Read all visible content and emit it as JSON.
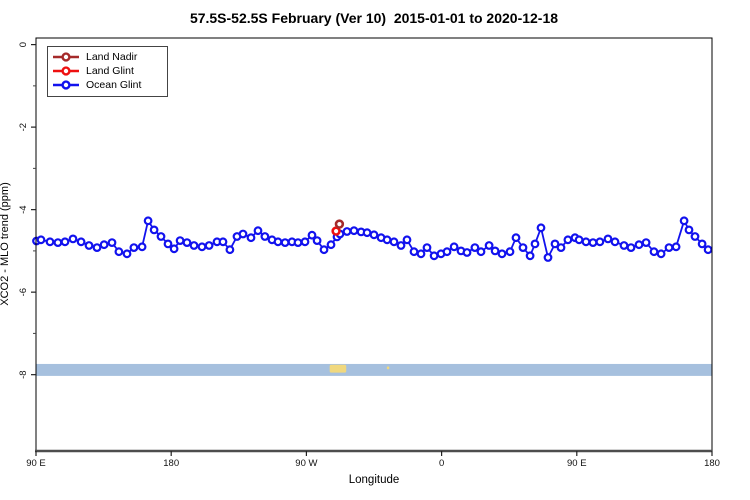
{
  "header": {
    "title": "57.5S-52.5S February (Ver 10)  2015-01-01 to 2020-12-18"
  },
  "legend": {
    "items": [
      {
        "label": "Land Nadir",
        "color": "#a52a2a"
      },
      {
        "label": "Land Glint",
        "color": "#ee1010"
      },
      {
        "label": "Ocean Glint",
        "color": "#1212ee"
      }
    ]
  },
  "axes": {
    "x": {
      "label": "Longitude",
      "ticks": [
        {
          "lon": 90,
          "label": "90 E"
        },
        {
          "lon": 180,
          "label": "180"
        },
        {
          "lon": 270,
          "label": "90 W"
        },
        {
          "lon": 360,
          "label": "0"
        },
        {
          "lon": 450,
          "label": "90 E"
        },
        {
          "lon": 540,
          "label": "180"
        }
      ]
    },
    "y": {
      "label": "XCO2 - MLO trend (ppm)",
      "ticks": [
        {
          "value": 0,
          "label": "0"
        },
        {
          "value": -2,
          "label": "-2"
        },
        {
          "value": -4,
          "label": "-4"
        },
        {
          "value": -6,
          "label": "-6"
        },
        {
          "value": -8,
          "label": "-8"
        }
      ],
      "minor_ticks": [
        -1,
        -3,
        -5,
        -7
      ]
    }
  },
  "chart_data": {
    "type": "line",
    "title": "57.5S-52.5S February (Ver 10)  2015-01-01 to 2020-12-18",
    "xlabel": "Longitude",
    "ylabel": "XCO2 - MLO trend (ppm)",
    "xlim": [
      90,
      540
    ],
    "ylim": [
      0.16,
      -9.85
    ],
    "x_axis_style": "longitude wraps eastward: 90E, 180, 90W, 0, 90E, 180",
    "legend_position": "top-left",
    "grid": false,
    "series": [
      {
        "name": "Land Nadir",
        "color": "#a52a2a",
        "marker": "open-circle",
        "points": [
          [
            292.0,
            -4.35
          ]
        ]
      },
      {
        "name": "Land Glint",
        "color": "#ee1010",
        "marker": "open-circle",
        "points": [
          [
            289.8,
            -4.52
          ]
        ]
      },
      {
        "name": "Ocean Glint",
        "color": "#1212ee",
        "marker": "open-circle",
        "points": [
          [
            90.3,
            -4.76
          ],
          [
            93.3,
            -4.73
          ],
          [
            99.3,
            -4.78
          ],
          [
            104.6,
            -4.8
          ],
          [
            109.3,
            -4.78
          ],
          [
            114.6,
            -4.71
          ],
          [
            120.0,
            -4.78
          ],
          [
            125.3,
            -4.87
          ],
          [
            130.6,
            -4.92
          ],
          [
            135.3,
            -4.85
          ],
          [
            140.6,
            -4.8
          ],
          [
            145.2,
            -5.02
          ],
          [
            150.6,
            -5.07
          ],
          [
            155.2,
            -4.92
          ],
          [
            160.6,
            -4.9
          ],
          [
            164.6,
            -4.27
          ],
          [
            168.6,
            -4.49
          ],
          [
            173.2,
            -4.65
          ],
          [
            177.9,
            -4.83
          ],
          [
            181.9,
            -4.95
          ],
          [
            185.9,
            -4.75
          ],
          [
            190.5,
            -4.8
          ],
          [
            195.2,
            -4.87
          ],
          [
            200.5,
            -4.9
          ],
          [
            205.2,
            -4.87
          ],
          [
            210.5,
            -4.78
          ],
          [
            214.5,
            -4.78
          ],
          [
            219.1,
            -4.97
          ],
          [
            223.8,
            -4.65
          ],
          [
            227.8,
            -4.59
          ],
          [
            233.1,
            -4.68
          ],
          [
            237.8,
            -4.51
          ],
          [
            242.4,
            -4.65
          ],
          [
            247.1,
            -4.73
          ],
          [
            251.1,
            -4.78
          ],
          [
            255.8,
            -4.8
          ],
          [
            260.4,
            -4.78
          ],
          [
            264.4,
            -4.8
          ],
          [
            269.1,
            -4.78
          ],
          [
            273.7,
            -4.62
          ],
          [
            277.1,
            -4.75
          ],
          [
            281.7,
            -4.97
          ],
          [
            286.4,
            -4.85
          ],
          [
            290.4,
            -4.66
          ],
          [
            292.4,
            -4.59
          ],
          [
            297.0,
            -4.53
          ],
          [
            301.7,
            -4.51
          ],
          [
            306.4,
            -4.54
          ],
          [
            310.4,
            -4.56
          ],
          [
            315.0,
            -4.61
          ],
          [
            319.7,
            -4.68
          ],
          [
            323.7,
            -4.73
          ],
          [
            328.3,
            -4.78
          ],
          [
            333.0,
            -4.87
          ],
          [
            337.0,
            -4.73
          ],
          [
            341.6,
            -5.02
          ],
          [
            346.3,
            -5.07
          ],
          [
            350.3,
            -4.92
          ],
          [
            355.0,
            -5.12
          ],
          [
            359.6,
            -5.07
          ],
          [
            363.6,
            -5.02
          ],
          [
            368.3,
            -4.9
          ],
          [
            372.9,
            -5.0
          ],
          [
            376.9,
            -5.04
          ],
          [
            382.2,
            -4.92
          ],
          [
            386.2,
            -5.02
          ],
          [
            391.6,
            -4.87
          ],
          [
            395.6,
            -5.0
          ],
          [
            400.2,
            -5.07
          ],
          [
            405.5,
            -5.02
          ],
          [
            409.5,
            -4.68
          ],
          [
            414.2,
            -4.92
          ],
          [
            418.9,
            -5.12
          ],
          [
            422.2,
            -4.83
          ],
          [
            426.2,
            -4.44
          ],
          [
            430.8,
            -5.16
          ],
          [
            435.5,
            -4.83
          ],
          [
            439.5,
            -4.92
          ],
          [
            444.1,
            -4.73
          ],
          [
            448.8,
            -4.68
          ],
          [
            451.5,
            -4.73
          ],
          [
            456.1,
            -4.78
          ],
          [
            460.8,
            -4.8
          ],
          [
            465.4,
            -4.78
          ],
          [
            470.8,
            -4.71
          ],
          [
            475.4,
            -4.78
          ],
          [
            481.4,
            -4.87
          ],
          [
            486.1,
            -4.92
          ],
          [
            491.4,
            -4.85
          ],
          [
            496.1,
            -4.8
          ],
          [
            501.4,
            -5.02
          ],
          [
            506.1,
            -5.07
          ],
          [
            511.4,
            -4.92
          ],
          [
            516.1,
            -4.9
          ],
          [
            521.4,
            -4.27
          ],
          [
            524.7,
            -4.49
          ],
          [
            528.7,
            -4.65
          ],
          [
            533.4,
            -4.83
          ],
          [
            537.4,
            -4.97
          ]
        ]
      }
    ],
    "map_strip": {
      "description": "surface-type strip: ocean band with land patches",
      "value_top": -7.74,
      "value_bottom": -8.03,
      "ocean_color": "#a6c0de",
      "land_color": "#f0d87e",
      "land_patches": [
        {
          "lon_start": 285.5,
          "lon_end": 296.5,
          "value_top": -7.76,
          "value_bottom": -7.95
        },
        {
          "lon_start": 323.5,
          "lon_end": 325.2,
          "value_top": -7.8,
          "value_bottom": -7.87
        }
      ]
    }
  }
}
